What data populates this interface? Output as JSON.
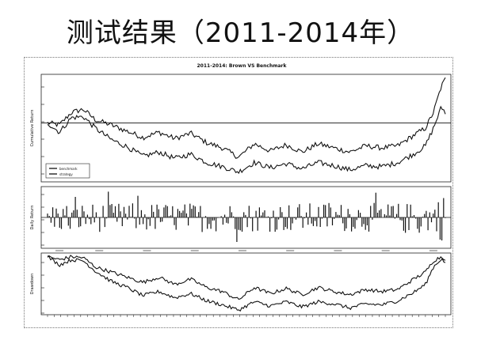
{
  "slide": {
    "title": "测试结果（2011-2014年）"
  },
  "chart_data": [
    {
      "panel": "cumulative-return",
      "type": "line",
      "title": "2011-2014: Brown VS Benchmark",
      "ylabel": "Cumulative Return",
      "legend": {
        "position": "bottom-left",
        "entries": [
          "benchmark",
          "strategy"
        ]
      },
      "baseline": 0,
      "x_range": [
        0,
        1
      ],
      "ylim": [
        -0.55,
        0.45
      ],
      "series": [
        {
          "id": "upper",
          "x": [
            0,
            0.03,
            0.06,
            0.09,
            0.12,
            0.16,
            0.2,
            0.24,
            0.28,
            0.32,
            0.36,
            0.4,
            0.44,
            0.48,
            0.52,
            0.56,
            0.6,
            0.64,
            0.68,
            0.72,
            0.76,
            0.8,
            0.84,
            0.88,
            0.92,
            0.95,
            0.97,
            0.99,
            1.0
          ],
          "values": [
            0,
            -0.02,
            0.1,
            0.13,
            0.03,
            -0.02,
            -0.08,
            -0.14,
            -0.09,
            -0.15,
            -0.1,
            -0.19,
            -0.24,
            -0.33,
            -0.2,
            -0.27,
            -0.21,
            -0.28,
            -0.2,
            -0.24,
            -0.28,
            -0.22,
            -0.24,
            -0.22,
            -0.12,
            -0.05,
            0.1,
            0.35,
            0.42
          ]
        },
        {
          "id": "lower",
          "x": [
            0,
            0.03,
            0.06,
            0.09,
            0.12,
            0.16,
            0.2,
            0.24,
            0.28,
            0.32,
            0.36,
            0.4,
            0.44,
            0.48,
            0.52,
            0.56,
            0.6,
            0.64,
            0.68,
            0.72,
            0.76,
            0.8,
            0.84,
            0.88,
            0.92,
            0.95,
            0.97,
            0.99,
            1.0
          ],
          "values": [
            0,
            -0.09,
            0.05,
            0.06,
            -0.05,
            -0.16,
            -0.23,
            -0.32,
            -0.28,
            -0.34,
            -0.3,
            -0.38,
            -0.42,
            -0.47,
            -0.38,
            -0.43,
            -0.39,
            -0.44,
            -0.38,
            -0.41,
            -0.45,
            -0.41,
            -0.42,
            -0.38,
            -0.3,
            -0.22,
            -0.05,
            0.15,
            0.1
          ]
        }
      ]
    },
    {
      "panel": "daily-return",
      "type": "bar",
      "ylabel": "Daily Return",
      "baseline": 0,
      "ylim": [
        -0.04,
        0.04
      ],
      "n_bars": 230,
      "seed": 7
    },
    {
      "panel": "drawdown",
      "type": "line",
      "ylabel": "Drawdown",
      "ylim": [
        -0.55,
        0.02
      ],
      "series": [
        {
          "id": "upper",
          "x": [
            0,
            0.03,
            0.06,
            0.09,
            0.12,
            0.16,
            0.2,
            0.24,
            0.28,
            0.32,
            0.36,
            0.4,
            0.44,
            0.48,
            0.52,
            0.56,
            0.6,
            0.64,
            0.68,
            0.72,
            0.76,
            0.8,
            0.84,
            0.88,
            0.92,
            0.95,
            0.97,
            0.99,
            1.0
          ],
          "values": [
            0,
            -0.03,
            0,
            -0.01,
            -0.1,
            -0.15,
            -0.2,
            -0.25,
            -0.2,
            -0.27,
            -0.22,
            -0.3,
            -0.34,
            -0.42,
            -0.3,
            -0.36,
            -0.31,
            -0.37,
            -0.3,
            -0.34,
            -0.37,
            -0.32,
            -0.34,
            -0.32,
            -0.22,
            -0.15,
            -0.04,
            0,
            -0.02
          ]
        },
        {
          "id": "lower",
          "x": [
            0,
            0.03,
            0.06,
            0.09,
            0.12,
            0.16,
            0.2,
            0.24,
            0.28,
            0.32,
            0.36,
            0.4,
            0.44,
            0.48,
            0.52,
            0.56,
            0.6,
            0.64,
            0.68,
            0.72,
            0.76,
            0.8,
            0.84,
            0.88,
            0.92,
            0.95,
            0.97,
            0.99,
            1.0
          ],
          "values": [
            0,
            -0.08,
            -0.03,
            -0.04,
            -0.14,
            -0.24,
            -0.3,
            -0.38,
            -0.34,
            -0.4,
            -0.36,
            -0.43,
            -0.47,
            -0.52,
            -0.44,
            -0.48,
            -0.44,
            -0.49,
            -0.44,
            -0.46,
            -0.5,
            -0.46,
            -0.47,
            -0.43,
            -0.35,
            -0.27,
            -0.1,
            -0.02,
            -0.06
          ]
        }
      ]
    }
  ]
}
